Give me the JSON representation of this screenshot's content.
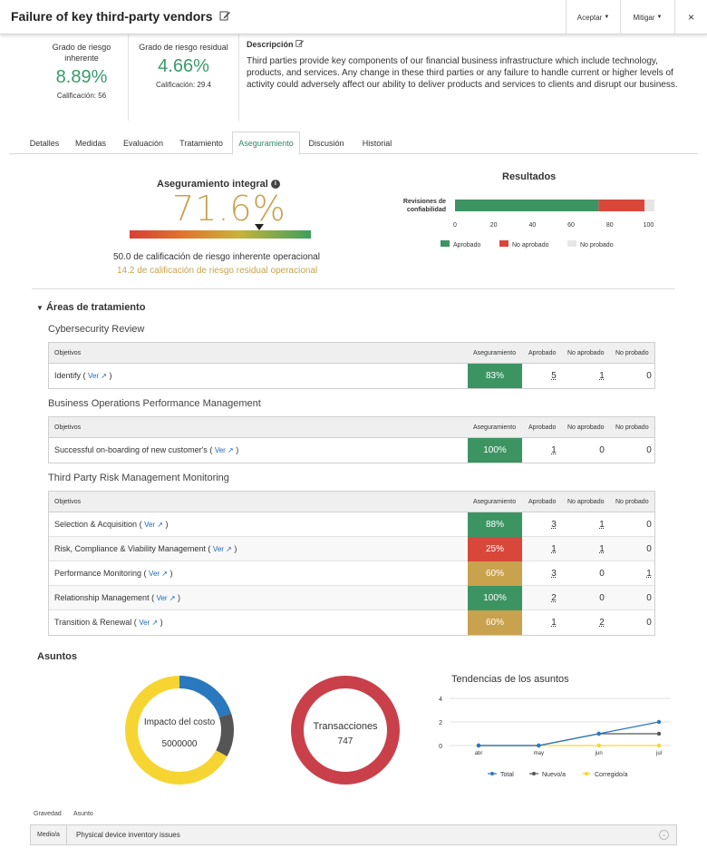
{
  "header": {
    "title": "Failure of key third-party vendors",
    "accept_label": "Aceptar",
    "mitigate_label": "Mitigar",
    "close_label": "×"
  },
  "summary": {
    "inherent": {
      "label": "Grado de riesgo inherente",
      "value": "8.89%",
      "rating": "Calificación: 56"
    },
    "residual": {
      "label": "Grado de riesgo residual",
      "value": "4.66%",
      "rating": "Calificación: 29.4"
    },
    "description_title": "Descripción",
    "description": "Third parties provide key components of our financial business infrastructure which include technology, products, and services. Any change in these third parties or any failure to handle current or higher levels of activity could adversely affect our ability to deliver products and services to clients and disrupt our business."
  },
  "tabs": [
    "Detalles",
    "Medidas",
    "Evaluación",
    "Tratamiento",
    "Aseguramiento",
    "Discusión",
    "Historial"
  ],
  "active_tab": "Aseguramiento",
  "assurance": {
    "title": "Aseguramiento integral",
    "value": "71.6%",
    "gauge_fraction": 0.716,
    "line1": "50.0 de calificación de riesgo inherente operacional",
    "line2": "14.2 de calificación de riesgo residual operacional"
  },
  "results": {
    "title": "Resultados",
    "chart_data": {
      "type": "bar",
      "orientation": "horizontal-stacked",
      "categories": [
        "Revisiones de confiabilidad"
      ],
      "series": [
        {
          "name": "Aprobado",
          "values": [
            72
          ],
          "color": "#3c9463"
        },
        {
          "name": "No aprobado",
          "values": [
            23
          ],
          "color": "#d9473a"
        },
        {
          "name": "No probado",
          "values": [
            5
          ],
          "color": "#e6e6e6"
        }
      ],
      "xlim": [
        0,
        100
      ],
      "xticks": [
        "0",
        "20",
        "40",
        "60",
        "80",
        "100"
      ],
      "legend": "bottom"
    }
  },
  "treatment": {
    "title": "Áreas de tratamiento",
    "columns": {
      "objective": "Objetivos",
      "assurance": "Aseguramiento",
      "approved": "Aprobado",
      "not_approved": "No aprobado",
      "not_tested": "No probado"
    },
    "ver_label": "Ver",
    "groups": [
      {
        "title": "Cybersecurity Review",
        "rows": [
          {
            "name": "Identify",
            "assurance": "83%",
            "color": "#3c9463",
            "approved": "5",
            "not_approved": "1",
            "not_tested": "0"
          }
        ]
      },
      {
        "title": "Business Operations Performance Management",
        "rows": [
          {
            "name": "Successful on-boarding of new customer's",
            "assurance": "100%",
            "color": "#3c9463",
            "approved": "1",
            "not_approved": "0",
            "not_tested": "0"
          }
        ]
      },
      {
        "title": "Third Party Risk Management Monitoring",
        "rows": [
          {
            "name": "Selection & Acquisition",
            "assurance": "88%",
            "color": "#3c9463",
            "approved": "3",
            "not_approved": "1",
            "not_tested": "0"
          },
          {
            "name": "Risk, Compliance & Viability Management",
            "assurance": "25%",
            "color": "#d9473a",
            "approved": "1",
            "not_approved": "1",
            "not_tested": "0"
          },
          {
            "name": "Performance Monitoring",
            "assurance": "60%",
            "color": "#c9a24d",
            "approved": "3",
            "not_approved": "0",
            "not_tested": "1"
          },
          {
            "name": "Relationship Management",
            "assurance": "100%",
            "color": "#3c9463",
            "approved": "2",
            "not_approved": "0",
            "not_tested": "0"
          },
          {
            "name": "Transition & Renewal",
            "assurance": "60%",
            "color": "#c9a24d",
            "approved": "1",
            "not_approved": "2",
            "not_tested": "0"
          }
        ]
      }
    ]
  },
  "issues": {
    "title": "Asuntos",
    "cost": {
      "label": "Impacto del costo",
      "value": "5000000"
    },
    "transactions": {
      "label": "Transacciones",
      "value": "747"
    },
    "chart_data": [
      {
        "type": "pie",
        "variant": "donut",
        "title": "Impacto del costo",
        "slices": [
          {
            "value": 0.2,
            "color": "#2a78bd"
          },
          {
            "value": 0.13,
            "color": "#555555"
          },
          {
            "value": 0.67,
            "color": "#f6d532"
          }
        ]
      },
      {
        "type": "pie",
        "variant": "donut",
        "title": "Transacciones",
        "slices": [
          {
            "value": 1.0,
            "color": "#c9404a"
          }
        ]
      },
      {
        "type": "line",
        "title": "Tendencias de los asuntos",
        "categories": [
          "abr",
          "may",
          "jun",
          "jul"
        ],
        "ylim": [
          0,
          4
        ],
        "yticks": [
          "0",
          "2",
          "4"
        ],
        "series": [
          {
            "name": "Total",
            "values": [
              0,
              0,
              1,
              2
            ],
            "color": "#2a78bd"
          },
          {
            "name": "Nuevo/a",
            "values": [
              0,
              0,
              1,
              1
            ],
            "color": "#555555"
          },
          {
            "name": "Corregido/a",
            "values": [
              0,
              0,
              0,
              0
            ],
            "color": "#f6d532"
          }
        ],
        "legend": "bottom"
      }
    ]
  },
  "issue_list": {
    "severity_header": "Gravedad",
    "issue_header": "Asunto",
    "rows": [
      {
        "severity": "Medio/a",
        "issue": "Physical device inventory issues"
      }
    ]
  }
}
